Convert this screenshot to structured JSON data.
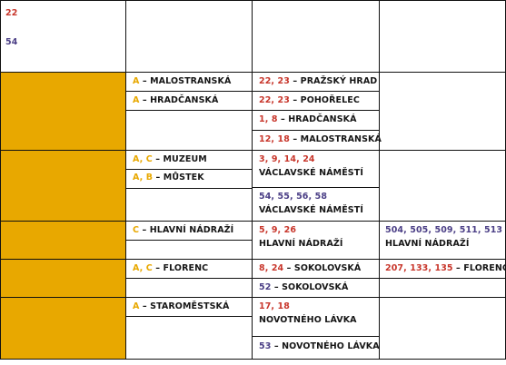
{
  "header": {
    "line_a": "22",
    "line_b": "54"
  },
  "colors": {
    "red": "#c8362b",
    "blue": "#4b3f86",
    "yellow": "#e8a800",
    "text": "#161616"
  },
  "rows": [
    {
      "metro": [
        {
          "lines": "A",
          "station": "MALOSTRANSKÁ"
        },
        {
          "lines": "A",
          "station": "HRADČANSKÁ"
        }
      ],
      "tram": [
        {
          "lines": "22, 23",
          "station": "PRAŽSKÝ HRAD"
        },
        {
          "lines": "22, 23",
          "station": "POHOŘELEC"
        },
        {
          "lines": "1, 8",
          "station": "HRADČANSKÁ"
        },
        {
          "lines": "12, 18",
          "station": "MALOSTRANSKÁ"
        }
      ]
    },
    {
      "metro": [
        {
          "lines": "A, C",
          "station": "MUZEUM"
        },
        {
          "lines": "A, B",
          "station": "MŮSTEK"
        }
      ],
      "tram": [
        {
          "lines": "3, 9, 14, 24",
          "station": "VÁCLAVSKÉ NÁMĚSTÍ"
        },
        {
          "lines": "54, 55, 56, 58",
          "station": "VÁCLAVSKÉ NÁMĚSTÍ"
        }
      ]
    },
    {
      "metro": [
        {
          "lines": "C",
          "station": "HLAVNÍ NÁDRAŽÍ"
        }
      ],
      "tram": [
        {
          "lines": "5, 9, 26",
          "station": "HLAVNÍ NÁDRAŽÍ"
        }
      ],
      "bus": [
        {
          "lines": "504, 505, 509, 511, 513",
          "station": "HLAVNÍ NÁDRAŽÍ"
        }
      ]
    },
    {
      "metro": [
        {
          "lines": "A, C",
          "station": "FLORENC"
        }
      ],
      "tram": [
        {
          "lines": "8, 24",
          "station": "SOKOLOVSKÁ"
        },
        {
          "lines": "52",
          "station": "SOKOLOVSKÁ"
        }
      ],
      "bus": [
        {
          "lines": "207, 133, 135",
          "station": "FLORENC"
        }
      ]
    },
    {
      "metro": [
        {
          "lines": "A",
          "station": "STAROMĚSTSKÁ"
        }
      ],
      "tram": [
        {
          "lines": "17, 18",
          "station": "NOVOTNÉHO LÁVKA"
        },
        {
          "lines": "53",
          "station": "NOVOTNÉHO LÁVKA"
        }
      ]
    }
  ]
}
